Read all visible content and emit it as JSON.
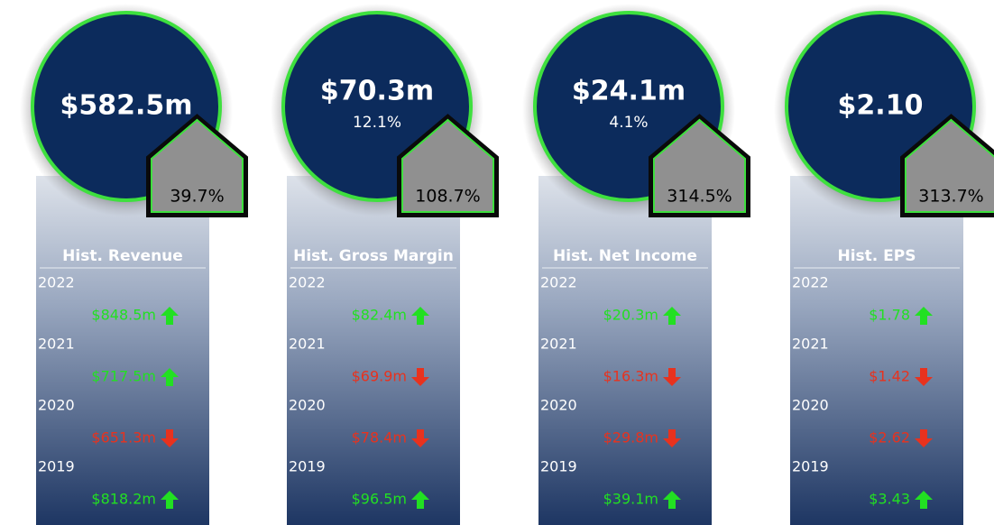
{
  "cards": [
    {
      "value": "$582.5m",
      "change": "39.7%",
      "title": "Hist. Revenue",
      "history": [
        {
          "year": "2022",
          "value": "$848.5m",
          "direction": "up"
        },
        {
          "year": "2021",
          "value": "$717.5m",
          "direction": "up"
        },
        {
          "year": "2020",
          "value": "$651.3m",
          "direction": "down"
        },
        {
          "year": "2019",
          "value": "$818.2m",
          "direction": "up"
        }
      ]
    },
    {
      "value": "$70.3m",
      "subtitle": "12.1%",
      "change": "108.7%",
      "title": "Hist. Gross Margin",
      "history": [
        {
          "year": "2022",
          "value": "$82.4m",
          "direction": "up"
        },
        {
          "year": "2021",
          "value": "$69.9m",
          "direction": "down"
        },
        {
          "year": "2020",
          "value": "$78.4m",
          "direction": "down"
        },
        {
          "year": "2019",
          "value": "$96.5m",
          "direction": "up"
        }
      ]
    },
    {
      "value": "$24.1m",
      "subtitle": "4.1%",
      "change": "314.5%",
      "title": "Hist. Net Income",
      "history": [
        {
          "year": "2022",
          "value": "$20.3m",
          "direction": "up"
        },
        {
          "year": "2021",
          "value": "$16.3m",
          "direction": "down"
        },
        {
          "year": "2020",
          "value": "$29.8m",
          "direction": "down"
        },
        {
          "year": "2019",
          "value": "$39.1m",
          "direction": "up"
        }
      ]
    },
    {
      "value": "$2.10",
      "change": "313.7%",
      "title": "Hist. EPS",
      "history": [
        {
          "year": "2022",
          "value": "$1.78",
          "direction": "up"
        },
        {
          "year": "2021",
          "value": "$1.42",
          "direction": "down"
        },
        {
          "year": "2020",
          "value": "$2.62",
          "direction": "down"
        },
        {
          "year": "2019",
          "value": "$3.43",
          "direction": "up"
        }
      ]
    }
  ]
}
